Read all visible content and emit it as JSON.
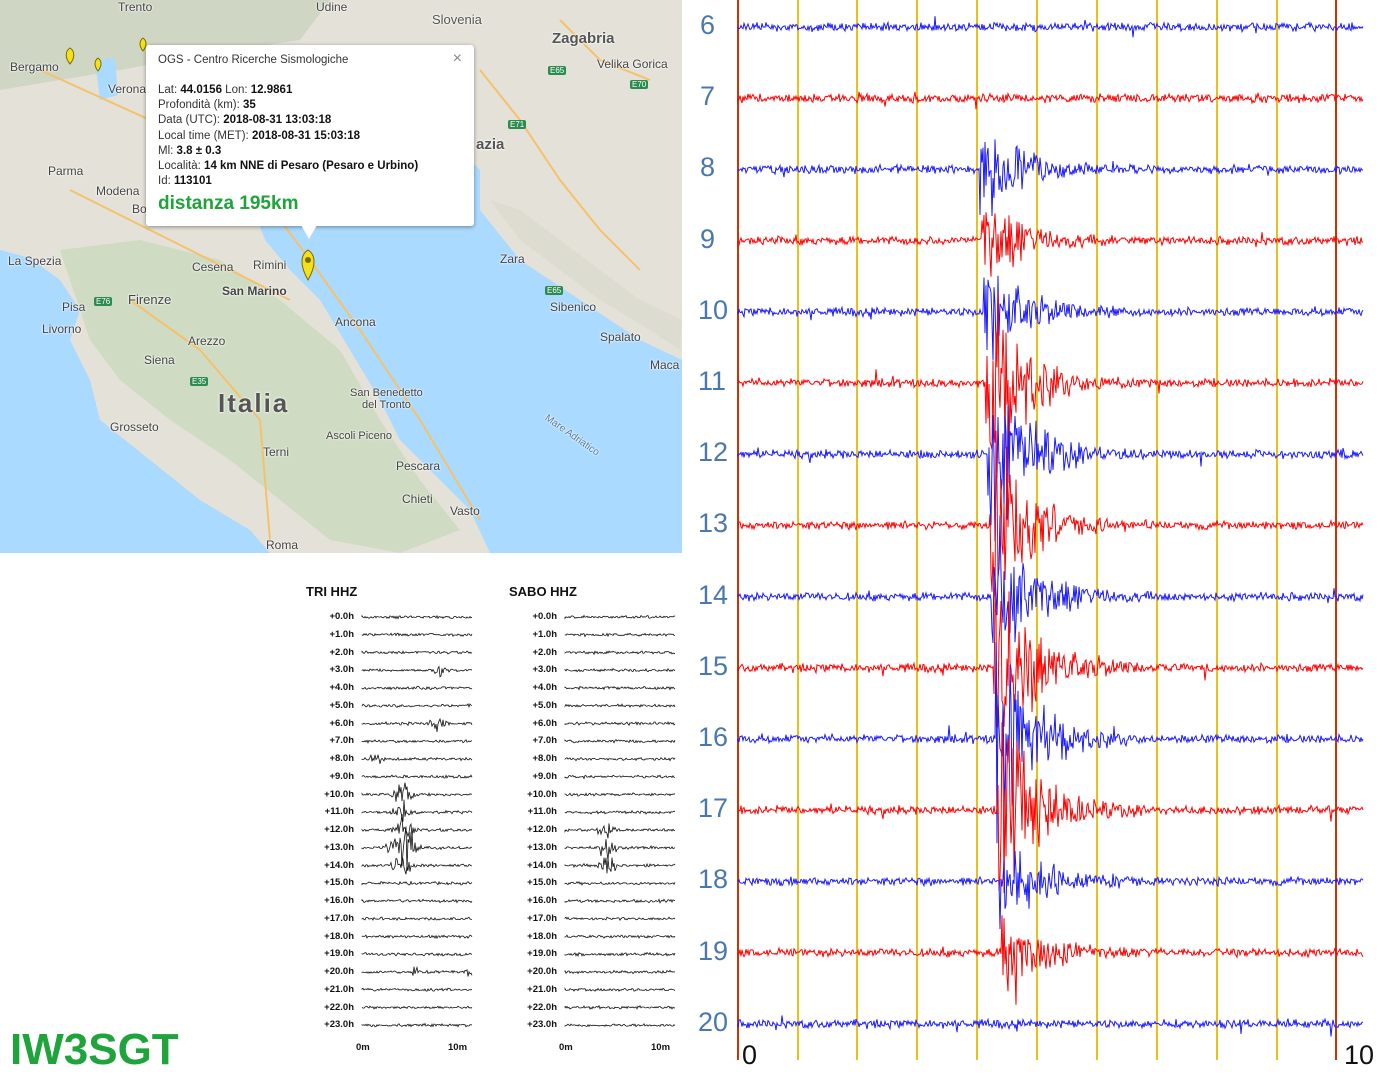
{
  "map": {
    "popup": {
      "title": "OGS - Centro Ricerche Sismologiche",
      "close": "×",
      "lat_label": "Lat:",
      "lat": "44.0156",
      "lon_label": "Lon:",
      "lon": "12.9861",
      "depth_label": "Profondità (km):",
      "depth": "35",
      "utc_label": "Data (UTC):",
      "utc": "2018-08-31 13:03:18",
      "local_label": "Local time (MET):",
      "local": "2018-08-31 15:03:18",
      "ml_label": "Ml:",
      "ml": "3.8 ± 0.3",
      "loc_label": "Località:",
      "loc": "14 km NNE di Pesaro (Pesaro e Urbino)",
      "id_label": "Id:",
      "id": "113101",
      "distance": "distanza 195km"
    },
    "places": {
      "trento": "Trento",
      "udine": "Udine",
      "slovenia": "Slovenia",
      "zagabria": "Zagabria",
      "velika": "Velika Gorica",
      "bergamo": "Bergamo",
      "verona": "Verona",
      "parma": "Parma",
      "modena": "Modena",
      "bo": "Bo",
      "azia": "azia",
      "laspezia": "La Spezia",
      "cesena": "Cesena",
      "rimini": "Rimini",
      "sanmarino": "San Marino",
      "zara": "Zara",
      "sibenico": "Sibenico",
      "pisa": "Pisa",
      "firenze": "Firenze",
      "livorno": "Livorno",
      "ancona": "Ancona",
      "spalato": "Spalato",
      "arezzo": "Arezzo",
      "siena": "Siena",
      "maca": "Maca",
      "italia": "Italia",
      "sanbenedetto1": "San Benedetto",
      "sanbenedetto2": "del Tronto",
      "grosseto": "Grosseto",
      "ascoli": "Ascoli Piceno",
      "mare": "Mare Adriatico",
      "terni": "Terni",
      "pescara": "Pescara",
      "chieti": "Chieti",
      "vasto": "Vasto",
      "roma": "Roma"
    },
    "highways": [
      "E65",
      "E70",
      "E71",
      "E76",
      "E65",
      "E35"
    ]
  },
  "mini_left": {
    "title": "TRI HHZ",
    "hours": [
      "+0.0h",
      "+1.0h",
      "+2.0h",
      "+3.0h",
      "+4.0h",
      "+5.0h",
      "+6.0h",
      "+7.0h",
      "+8.0h",
      "+9.0h",
      "+10.0h",
      "+11.0h",
      "+12.0h",
      "+13.0h",
      "+14.0h",
      "+15.0h",
      "+16.0h",
      "+17.0h",
      "+18.0h",
      "+19.0h",
      "+20.0h",
      "+21.0h",
      "+22.0h",
      "+23.0h"
    ],
    "x0": "0m",
    "x1": "10m"
  },
  "mini_right": {
    "title": "SABO HHZ",
    "hours": [
      "+0.0h",
      "+1.0h",
      "+2.0h",
      "+3.0h",
      "+4.0h",
      "+5.0h",
      "+6.0h",
      "+7.0h",
      "+8.0h",
      "+9.0h",
      "+10.0h",
      "+11.0h",
      "+12.0h",
      "+13.0h",
      "+14.0h",
      "+15.0h",
      "+16.0h",
      "+17.0h",
      "+18.0h",
      "+19.0h",
      "+20.0h",
      "+21.0h",
      "+22.0h",
      "+23.0h"
    ],
    "x0": "0m",
    "x1": "10m"
  },
  "callsign": "IW3SGT",
  "helicorder": {
    "hours": [
      "6",
      "7",
      "8",
      "9",
      "10",
      "11",
      "12",
      "13",
      "14",
      "15",
      "16",
      "17",
      "18",
      "19",
      "20"
    ],
    "x0": "0",
    "x1": "10",
    "colors": {
      "blue": "#1a1aff",
      "red": "#ff0000",
      "grid": "#e8c21c",
      "edge": "#cc3300"
    }
  }
}
